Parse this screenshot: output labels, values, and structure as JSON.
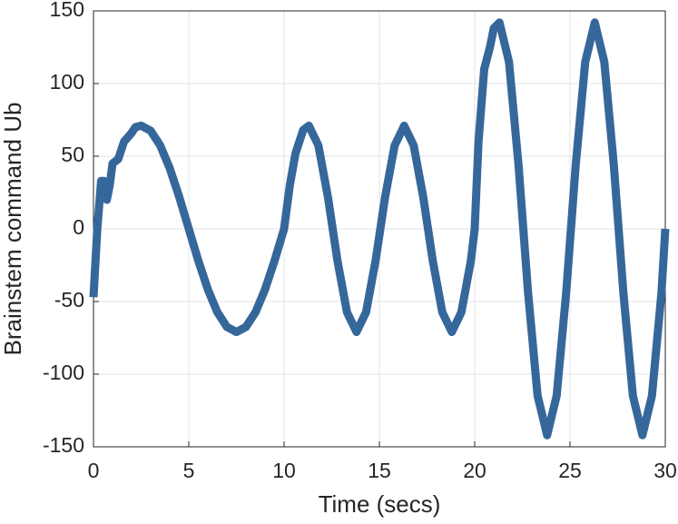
{
  "chart_data": {
    "type": "line",
    "xlabel": "Time (secs)",
    "ylabel": "Brainstem command Ub",
    "x": [
      0,
      0.2,
      0.4,
      0.55,
      0.7,
      0.85,
      1.0,
      1.3,
      1.6,
      2.0,
      2.2,
      2.5,
      3.0,
      3.5,
      4.0,
      4.5,
      5.0,
      5.5,
      6.0,
      6.5,
      7.0,
      7.5,
      8.0,
      8.5,
      9.0,
      9.5,
      10.0,
      10.3,
      10.6,
      11.0,
      11.3,
      11.8,
      12.3,
      12.8,
      13.3,
      13.8,
      14.3,
      14.8,
      15.3,
      15.8,
      16.3,
      16.8,
      17.3,
      17.8,
      18.3,
      18.8,
      19.3,
      19.8,
      20.0,
      20.2,
      20.5,
      20.8,
      21.0,
      21.3,
      21.8,
      22.3,
      22.8,
      23.3,
      23.8,
      24.3,
      24.8,
      25.3,
      25.8,
      26.3,
      26.8,
      27.3,
      27.8,
      28.3,
      28.8,
      29.3,
      29.8,
      30.0
    ],
    "series": [
      {
        "name": "Ub",
        "color": "#36679b",
        "values": [
          -47,
          0,
          33,
          33,
          20,
          30,
          45,
          48,
          60,
          66,
          70,
          71,
          67.5,
          57.4,
          41.7,
          21.9,
          0,
          -21.9,
          -41.7,
          -57.4,
          -67.5,
          -71,
          -67.5,
          -57.4,
          -41.7,
          -21.9,
          0,
          30,
          52,
          68,
          71,
          57.4,
          21.9,
          -21.9,
          -57.4,
          -71,
          -57.4,
          -21.9,
          21.9,
          57.4,
          71,
          57.4,
          21.9,
          -21.9,
          -57.4,
          -71,
          -57.4,
          -21.9,
          0,
          60,
          110,
          125,
          138,
          142,
          114.9,
          43.9,
          -43.9,
          -114.9,
          -142,
          -114.9,
          -43.9,
          43.9,
          114.9,
          142,
          114.9,
          43.9,
          -43.9,
          -114.9,
          -142,
          -114.9,
          -43.9,
          0
        ]
      }
    ],
    "xlim": [
      0,
      30
    ],
    "xticks": [
      0,
      5,
      10,
      15,
      20,
      25,
      30
    ],
    "ylim": [
      -150,
      150
    ],
    "yticks": [
      -150,
      -100,
      -50,
      0,
      50,
      100,
      150
    ],
    "grid": true
  }
}
